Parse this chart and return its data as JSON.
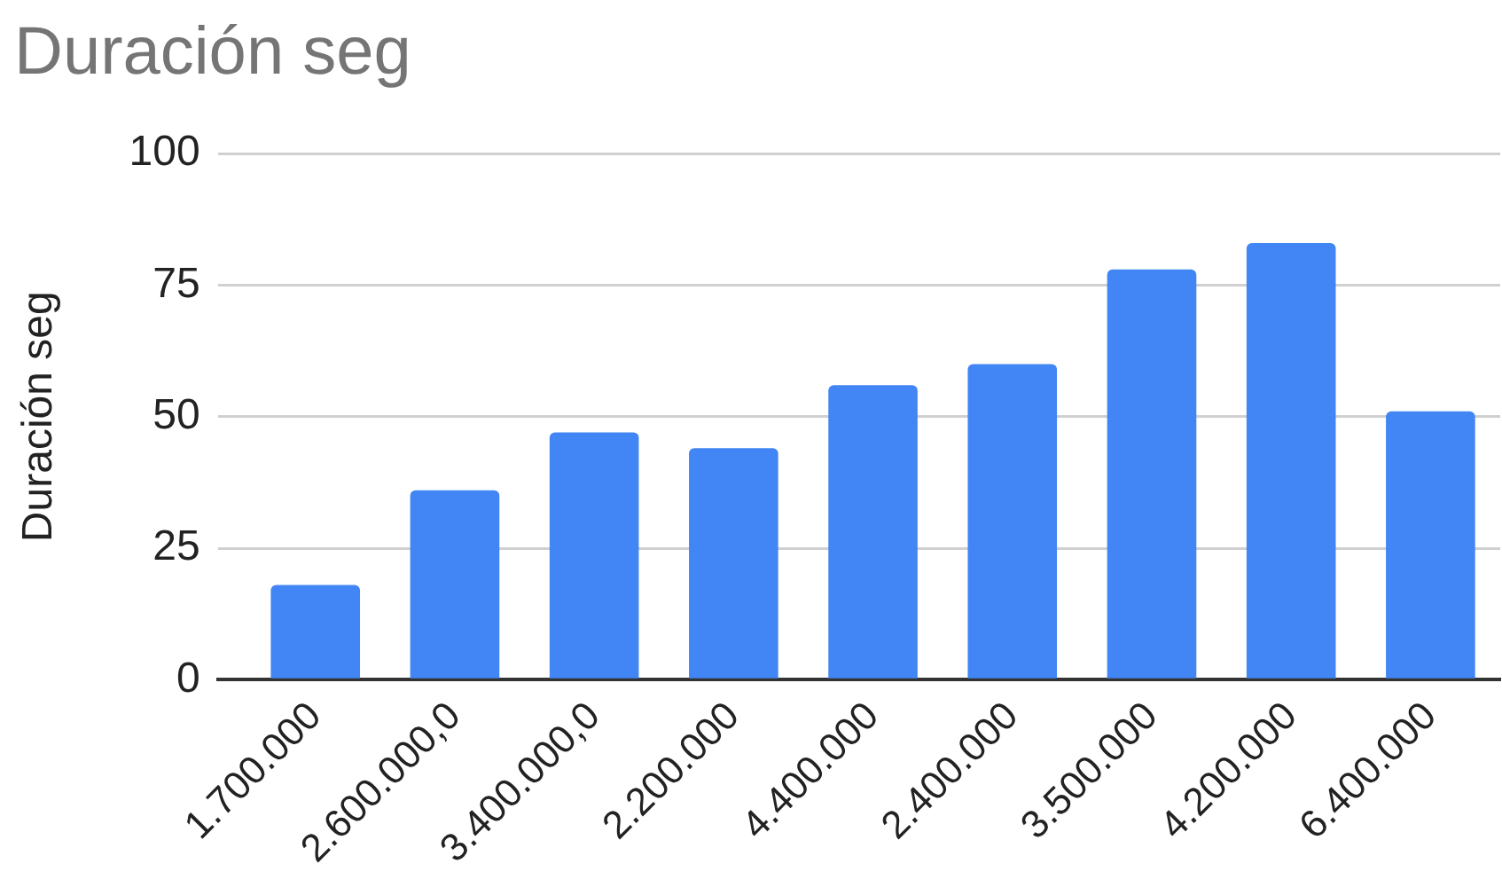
{
  "chart_data": {
    "type": "bar",
    "title": "Duración seg",
    "ylabel": "Duración seg",
    "categories": [
      "1.700.000",
      "2.600.000,0",
      "3.400.000,0",
      "2.200.000",
      "4.400.000",
      "2.400.000",
      "3.500.000",
      "4.200.000",
      "6.400.000"
    ],
    "values": [
      18,
      36,
      47,
      44,
      56,
      60,
      78,
      83,
      51
    ],
    "color": "#4285f4",
    "ylim": [
      0,
      100
    ],
    "yticks": [
      0,
      25,
      50,
      75,
      100
    ],
    "grid": "y"
  }
}
